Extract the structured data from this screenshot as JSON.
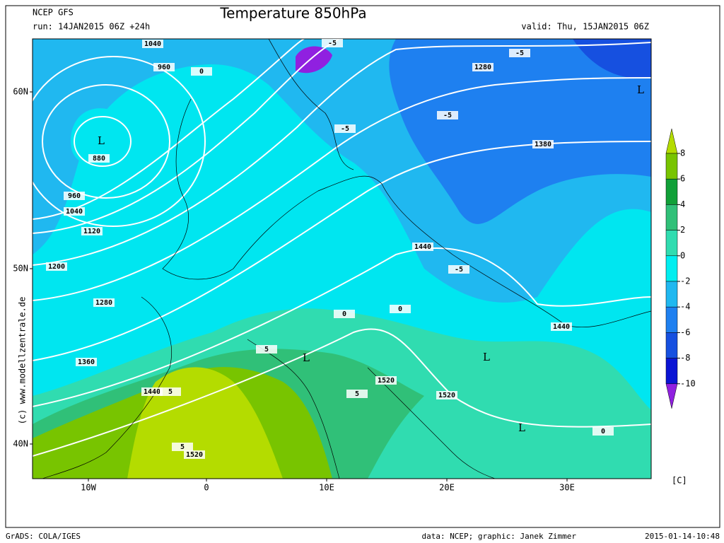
{
  "header": {
    "model": "NCEP GFS",
    "run": "run: 14JAN2015 06Z +24h",
    "title": "Temperature 850hPa",
    "valid": "valid: Thu, 15JAN2015 06Z"
  },
  "map": {
    "lat_labels": [
      "60N",
      "50N",
      "40N"
    ],
    "lon_labels": [
      "10W",
      "0",
      "10E",
      "20E",
      "30E"
    ],
    "contour_labels": [
      1040,
      960,
      880,
      960,
      1040,
      1120,
      1200,
      1280,
      1360,
      1440,
      1520,
      1520,
      1520,
      1440,
      1440,
      1380,
      1280,
      -5,
      -5,
      -5,
      -5,
      -5,
      5,
      5,
      5,
      5,
      0,
      0,
      0,
      0
    ],
    "low_markers": [
      "L",
      "L",
      "L",
      "L",
      "L"
    ],
    "copyright": "(c) www.modellzentrale.de"
  },
  "colorbar": {
    "ticks": [
      8,
      6,
      4,
      2,
      0,
      -2,
      -4,
      -6,
      -8,
      -10
    ],
    "colors": [
      "#b4dc00",
      "#78c400",
      "#10a038",
      "#30c078",
      "#30dcb0",
      "#00eef0",
      "#20b8f0",
      "#1e80f0",
      "#1650e0",
      "#0a14d4",
      "#9020e0"
    ],
    "unit": "[C]"
  },
  "footer": {
    "software": "GrADS: COLA/IGES",
    "credit": "data: NCEP; graphic: Janek Zimmer",
    "timestamp": "2015-01-14-10:48"
  }
}
